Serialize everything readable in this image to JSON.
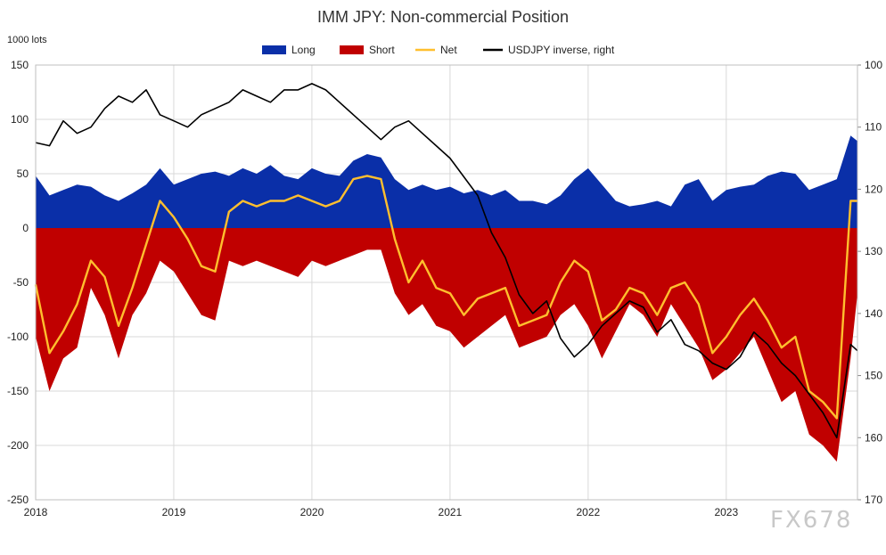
{
  "chart_data": {
    "type": "area",
    "title": "IMM JPY: Non-commercial Position",
    "ylabel": "1000 lots",
    "ylim": [
      -250,
      150
    ],
    "y2lim": [
      100,
      170
    ],
    "y2_inverted": true,
    "y_ticks": [
      150,
      100,
      50,
      0,
      -50,
      -100,
      -150,
      -200,
      -250
    ],
    "y2_ticks": [
      100,
      110,
      120,
      130,
      140,
      150,
      160,
      170
    ],
    "x_ticks": [
      "2018",
      "2019",
      "2020",
      "2021",
      "2022",
      "2023"
    ],
    "xlim": [
      2018.0,
      2023.95
    ],
    "grid": true,
    "legend_position": "top",
    "x": [
      2018.0,
      2018.1,
      2018.2,
      2018.3,
      2018.4,
      2018.5,
      2018.6,
      2018.7,
      2018.8,
      2018.9,
      2019.0,
      2019.1,
      2019.2,
      2019.3,
      2019.4,
      2019.5,
      2019.6,
      2019.7,
      2019.8,
      2019.9,
      2020.0,
      2020.1,
      2020.2,
      2020.3,
      2020.4,
      2020.5,
      2020.6,
      2020.7,
      2020.8,
      2020.9,
      2021.0,
      2021.1,
      2021.2,
      2021.3,
      2021.4,
      2021.5,
      2021.6,
      2021.7,
      2021.8,
      2021.9,
      2022.0,
      2022.1,
      2022.2,
      2022.3,
      2022.4,
      2022.5,
      2022.6,
      2022.7,
      2022.8,
      2022.9,
      2023.0,
      2023.1,
      2023.2,
      2023.3,
      2023.4,
      2023.5,
      2023.6,
      2023.7,
      2023.8,
      2023.9,
      2023.95
    ],
    "series": [
      {
        "name": "Long",
        "color": "#0a2fa8",
        "kind": "area",
        "values": [
          48,
          30,
          35,
          40,
          38,
          30,
          25,
          32,
          40,
          55,
          40,
          45,
          50,
          52,
          48,
          55,
          50,
          58,
          48,
          45,
          55,
          50,
          48,
          62,
          68,
          65,
          45,
          35,
          40,
          35,
          38,
          32,
          35,
          30,
          35,
          25,
          25,
          22,
          30,
          45,
          55,
          40,
          25,
          20,
          22,
          25,
          20,
          40,
          45,
          25,
          35,
          38,
          40,
          48,
          52,
          50,
          35,
          40,
          45,
          85,
          80
        ]
      },
      {
        "name": "Short",
        "color": "#c00000",
        "kind": "area",
        "values": [
          -100,
          -150,
          -120,
          -110,
          -55,
          -80,
          -120,
          -80,
          -60,
          -30,
          -40,
          -60,
          -80,
          -85,
          -30,
          -35,
          -30,
          -35,
          -40,
          -45,
          -30,
          -35,
          -30,
          -25,
          -20,
          -20,
          -60,
          -80,
          -70,
          -90,
          -95,
          -110,
          -100,
          -90,
          -80,
          -110,
          -105,
          -100,
          -80,
          -70,
          -90,
          -120,
          -95,
          -70,
          -80,
          -100,
          -70,
          -90,
          -110,
          -140,
          -130,
          -115,
          -100,
          -130,
          -160,
          -150,
          -190,
          -200,
          -215,
          -120,
          -60
        ]
      },
      {
        "name": "Net",
        "color": "#ffbf2e",
        "kind": "line",
        "values": [
          -52,
          -115,
          -95,
          -70,
          -30,
          -45,
          -90,
          -55,
          -15,
          25,
          10,
          -10,
          -35,
          -40,
          15,
          25,
          20,
          25,
          25,
          30,
          25,
          20,
          25,
          45,
          48,
          45,
          -10,
          -50,
          -30,
          -55,
          -60,
          -80,
          -65,
          -60,
          -55,
          -90,
          -85,
          -80,
          -50,
          -30,
          -40,
          -85,
          -75,
          -55,
          -60,
          -80,
          -55,
          -50,
          -70,
          -115,
          -100,
          -80,
          -65,
          -85,
          -110,
          -100,
          -150,
          -160,
          -175,
          25,
          25
        ]
      },
      {
        "name": "USDJPY inverse, right",
        "color": "#000000",
        "kind": "line",
        "axis": "right",
        "values": [
          112.5,
          113,
          109,
          111,
          110,
          107,
          105,
          106,
          104,
          108,
          109,
          110,
          108,
          107,
          106,
          104,
          105,
          106,
          104,
          104,
          103,
          104,
          106,
          108,
          110,
          112,
          110,
          109,
          111,
          113,
          115,
          118,
          121,
          127,
          131,
          137,
          140,
          138,
          144,
          147,
          145,
          142,
          140,
          138,
          139,
          143,
          141,
          145,
          146,
          148,
          149,
          147,
          143,
          145,
          148,
          150,
          153,
          156,
          160,
          145,
          146
        ]
      }
    ]
  },
  "watermark": "FX678"
}
